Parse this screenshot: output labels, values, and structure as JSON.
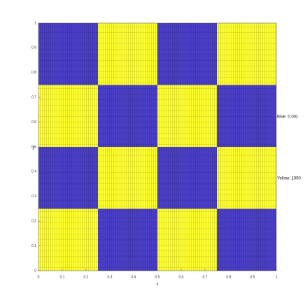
{
  "chart_data": {
    "type": "heatmap",
    "xlabel": "x",
    "ylabel": "y",
    "x_edges": [
      0,
      0.25,
      0.5,
      0.75,
      1
    ],
    "y_edges": [
      0,
      0.25,
      0.5,
      0.75,
      1
    ],
    "z": [
      [
        1000,
        0.001,
        1000,
        0.001
      ],
      [
        0.001,
        1000,
        0.001,
        1000
      ],
      [
        1000,
        0.001,
        1000,
        0.001
      ],
      [
        0.001,
        1000,
        0.001,
        1000
      ]
    ],
    "colormap": [
      "#4b3fc8",
      "#ffff30"
    ],
    "color_scale": "log",
    "xlim": [
      0,
      1
    ],
    "ylim": [
      0,
      1
    ],
    "xticks": [
      0,
      0.1,
      0.2,
      0.3,
      0.4,
      0.5,
      0.6,
      0.7,
      0.8,
      0.9,
      1
    ],
    "yticks": [
      0,
      0.1,
      0.2,
      0.3,
      0.4,
      0.5,
      0.6,
      0.7,
      0.8,
      0.9,
      1
    ],
    "annotations": [
      "Blue: 0.001",
      "Yellow: 1000"
    ]
  }
}
